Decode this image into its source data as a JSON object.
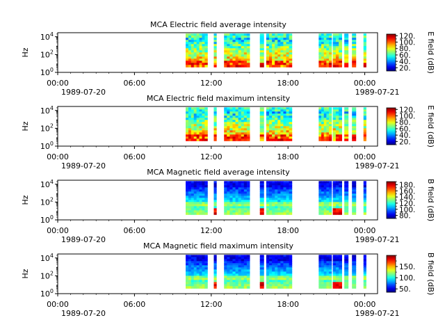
{
  "chart_data": [
    {
      "type": "heatmap",
      "title": "MCA  Electric field average intensity",
      "ylabel": "Hz",
      "colorbar": {
        "label": "E field (dB)",
        "ticks": [
          "20.",
          "40.",
          "60.",
          "80.",
          "100.",
          "120."
        ],
        "range": [
          10,
          125
        ]
      },
      "xlim": [
        "1989-07-20 00:00",
        "1989-07-21 01:00"
      ],
      "x_ticks": [
        "00:00",
        "06:00",
        "12:00",
        "18:00",
        "00:00"
      ],
      "x_date_labels": [
        "1989-07-20",
        "1989-07-21"
      ],
      "y_ticks": [
        "10^0",
        "10^2",
        "10^4"
      ],
      "ylim": [
        1,
        30000
      ],
      "data_intervals_hours": [
        [
          10.0,
          11.7
        ],
        [
          12.2,
          12.4
        ],
        [
          13.0,
          15.0
        ],
        [
          15.8,
          16.1
        ],
        [
          16.3,
          18.3
        ],
        [
          20.4,
          21.4
        ],
        [
          21.5,
          22.2
        ],
        [
          22.4,
          22.7
        ],
        [
          23.0,
          23.3
        ],
        [
          23.9,
          24.1
        ]
      ],
      "colorscale": "jet",
      "grid": false
    },
    {
      "type": "heatmap",
      "title": "MCA  Electric field maximum intensity",
      "ylabel": "Hz",
      "colorbar": {
        "label": "E field (dB)",
        "ticks": [
          "20.",
          "40.",
          "60.",
          "80.",
          "100.",
          "120."
        ],
        "range": [
          10,
          125
        ]
      },
      "xlim": [
        "1989-07-20 00:00",
        "1989-07-21 01:00"
      ],
      "x_ticks": [
        "00:00",
        "06:00",
        "12:00",
        "18:00",
        "00:00"
      ],
      "x_date_labels": [
        "1989-07-20",
        "1989-07-21"
      ],
      "y_ticks": [
        "10^0",
        "10^2",
        "10^4"
      ],
      "ylim": [
        1,
        30000
      ],
      "data_intervals_hours": [
        [
          10.0,
          11.7
        ],
        [
          12.2,
          12.4
        ],
        [
          13.0,
          15.0
        ],
        [
          15.8,
          16.1
        ],
        [
          16.3,
          18.3
        ],
        [
          20.4,
          21.4
        ],
        [
          21.5,
          22.2
        ],
        [
          22.4,
          22.7
        ],
        [
          23.0,
          23.3
        ],
        [
          23.9,
          24.1
        ]
      ],
      "colorscale": "jet",
      "grid": false
    },
    {
      "type": "heatmap",
      "title": "MCA  Magnetic field average intensity",
      "ylabel": "Hz",
      "colorbar": {
        "label": "B field (dB)",
        "ticks": [
          "80.",
          "100.",
          "120.",
          "140.",
          "160.",
          "180."
        ],
        "range": [
          70,
          190
        ]
      },
      "xlim": [
        "1989-07-20 00:00",
        "1989-07-21 01:00"
      ],
      "x_ticks": [
        "00:00",
        "06:00",
        "12:00",
        "18:00",
        "00:00"
      ],
      "x_date_labels": [
        "1989-07-20",
        "1989-07-21"
      ],
      "y_ticks": [
        "10^0",
        "10^2",
        "10^4"
      ],
      "ylim": [
        1,
        30000
      ],
      "data_intervals_hours": [
        [
          10.0,
          11.7
        ],
        [
          12.2,
          12.4
        ],
        [
          13.0,
          15.0
        ],
        [
          15.8,
          16.1
        ],
        [
          16.3,
          18.3
        ],
        [
          20.4,
          21.4
        ],
        [
          21.5,
          22.2
        ],
        [
          22.4,
          22.7
        ],
        [
          23.0,
          23.3
        ],
        [
          23.9,
          24.1
        ]
      ],
      "colorscale": "jet",
      "grid": false
    },
    {
      "type": "heatmap",
      "title": "MCA  Magnetic field maximum intensity",
      "ylabel": "Hz",
      "colorbar": {
        "label": "B field (dB)",
        "ticks": [
          "50.",
          "100.",
          "150."
        ],
        "range": [
          35,
          200
        ]
      },
      "xlim": [
        "1989-07-20 00:00",
        "1989-07-21 01:00"
      ],
      "x_ticks": [
        "00:00",
        "06:00",
        "12:00",
        "18:00",
        "00:00"
      ],
      "x_date_labels": [
        "1989-07-20",
        "1989-07-21"
      ],
      "y_ticks": [
        "10^0",
        "10^2",
        "10^4"
      ],
      "ylim": [
        1,
        30000
      ],
      "data_intervals_hours": [
        [
          10.0,
          11.7
        ],
        [
          12.2,
          12.4
        ],
        [
          13.0,
          15.0
        ],
        [
          15.8,
          16.1
        ],
        [
          16.3,
          18.3
        ],
        [
          20.4,
          21.4
        ],
        [
          21.5,
          22.2
        ],
        [
          22.4,
          22.7
        ],
        [
          23.0,
          23.3
        ],
        [
          23.9,
          24.1
        ]
      ],
      "colorscale": "jet",
      "grid": false
    }
  ]
}
